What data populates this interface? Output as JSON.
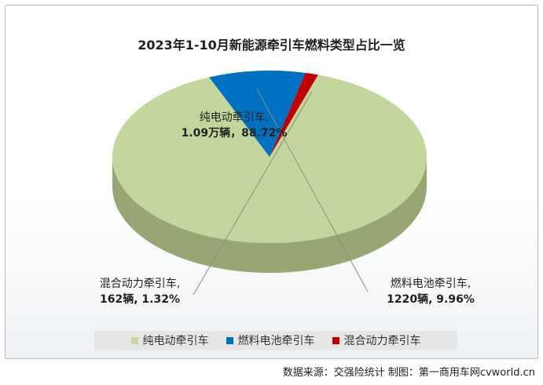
{
  "chart_data": {
    "type": "pie",
    "title": "2023年1-10月新能源牵引车燃料类型占比一览",
    "slices": [
      {
        "name": "纯电动牵引车",
        "value": 88.72,
        "label_line1": "纯电动牵引车,",
        "label_line2": "1.09万辆，88.72%",
        "color": "#c3d69b",
        "dark": "#98a673"
      },
      {
        "name": "燃料电池牵引车",
        "value": 9.96,
        "label_line1": "燃料电池牵引车,",
        "label_line2": "1220辆, 9.96%",
        "color": "#0070c0",
        "dark": "#0a3d6b"
      },
      {
        "name": "混合动力牵引车",
        "value": 1.32,
        "label_line1": "混合动力牵引车,",
        "label_line2": "162辆, 1.32%",
        "color": "#c00000",
        "dark": "#7a0000"
      }
    ],
    "legend_placement": "bottom"
  },
  "source": "数据来源：交强险统计 制图：第一商用车网cvworld.cn"
}
